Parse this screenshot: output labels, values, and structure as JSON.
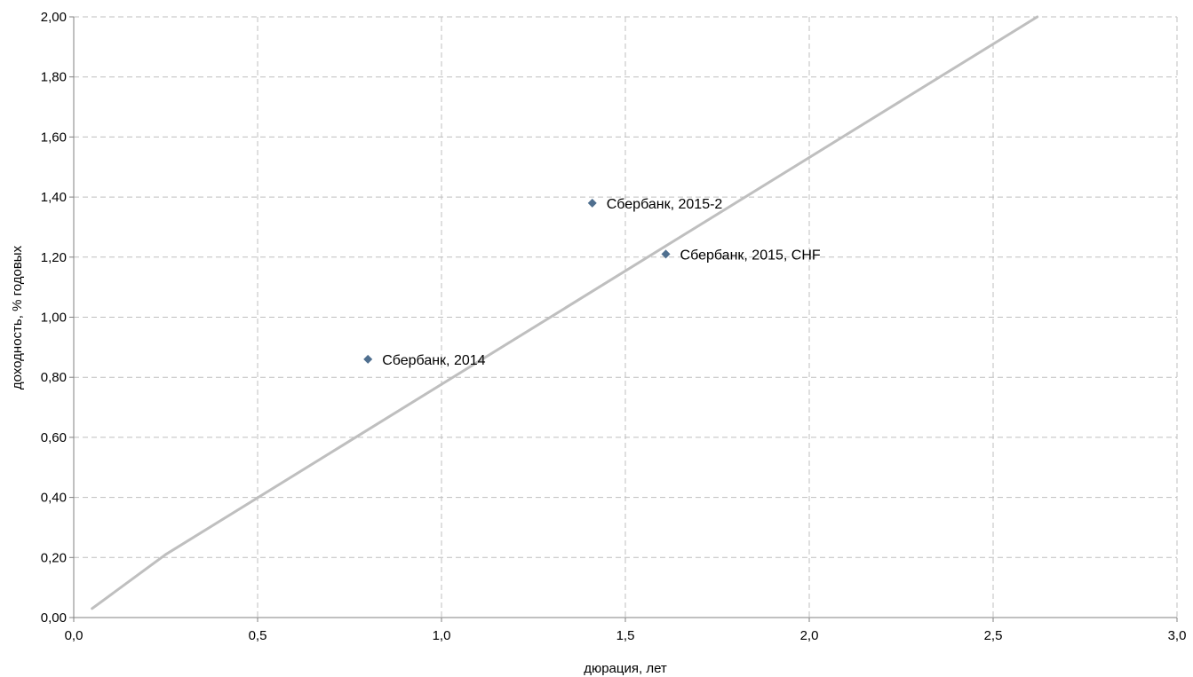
{
  "chart_data": {
    "type": "scatter",
    "title": "",
    "xlabel": "дюрация, лет",
    "ylabel": "доходность, % годовых",
    "xlim": [
      0,
      3
    ],
    "ylim": [
      0,
      2
    ],
    "x_ticks": [
      "0,0",
      "0,5",
      "1,0",
      "1,5",
      "2,0",
      "2,5",
      "3,0"
    ],
    "y_ticks": [
      "0,00",
      "0,20",
      "0,40",
      "0,60",
      "0,80",
      "1,00",
      "1,20",
      "1,40",
      "1,60",
      "1,80",
      "2,00"
    ],
    "grid": true,
    "legend": "none",
    "series": [
      {
        "points": [
          {
            "label": "Сбербанк, 2014",
            "x": 0.8,
            "y": 0.86
          },
          {
            "label": "Сбербанк, 2015-2",
            "x": 1.41,
            "y": 1.38
          },
          {
            "label": "Сбербанк, 2015, CHF",
            "x": 1.61,
            "y": 1.21
          }
        ],
        "marker": "diamond",
        "color": "#4f6f8f"
      }
    ],
    "trendline": {
      "x": [
        0.05,
        0.25,
        2.62
      ],
      "y": [
        0.03,
        0.21,
        2.0
      ],
      "color": "#bfbfbf"
    }
  }
}
